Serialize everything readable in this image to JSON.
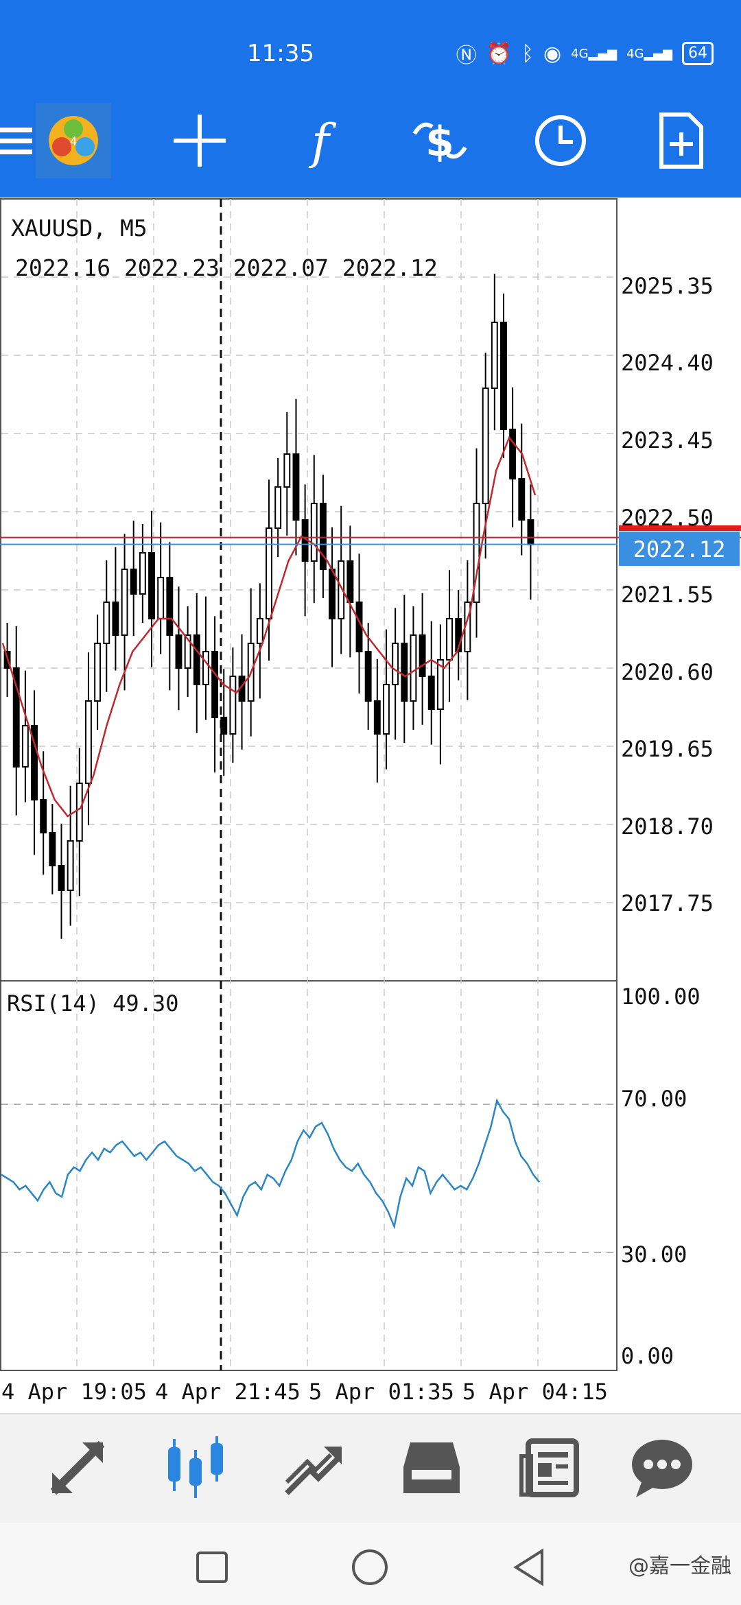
{
  "status_bar": {
    "time": "11:35",
    "signal_labels": [
      "4G",
      "4G"
    ],
    "battery": "64"
  },
  "toolbar": {
    "icons": [
      "menu-icon",
      "mt4-logo",
      "crosshair-icon",
      "indicators-icon",
      "trade-icon",
      "timeframe-clock-icon",
      "new-template-icon"
    ]
  },
  "chart": {
    "symbol_label": "XAUUSD, M5",
    "ohlc_values": "2022.16 2022.23 2022.07 2022.12",
    "price_ticks": [
      "2025.35",
      "2024.40",
      "2023.45",
      "2022.50",
      "2021.55",
      "2020.60",
      "2019.65",
      "2018.70",
      "2017.75"
    ],
    "current_price": "2022.12",
    "rsi_label": "RSI(14) 49.30",
    "rsi_ticks": [
      "100.00",
      "70.00",
      "30.00",
      "0.00"
    ],
    "time_ticks": [
      "4 Apr 19:05",
      "4 Apr 21:45",
      "5 Apr 01:35",
      "5 Apr 04:15"
    ],
    "colors": {
      "bull_bear_candles": "#000000",
      "moving_average": "#c0282d",
      "rsi_line": "#2b86c4",
      "current_price_tag": "#3b8fe0",
      "bid_line": "#c0282d"
    }
  },
  "chart_data": {
    "type": "candlestick",
    "title": "XAUUSD, M5",
    "ylim": [
      2016.8,
      2026.3
    ],
    "x_ticks": [
      "4 Apr 19:05",
      "4 Apr 21:45",
      "5 Apr 01:35",
      "5 Apr 04:15"
    ],
    "candles_close": [
      2020.6,
      2019.4,
      2019.9,
      2019.0,
      2018.6,
      2018.2,
      2017.9,
      2018.5,
      2019.2,
      2020.2,
      2020.9,
      2021.4,
      2021.0,
      2021.8,
      2021.5,
      2022.0,
      2021.2,
      2021.7,
      2021.0,
      2020.6,
      2021.0,
      2020.4,
      2020.8,
      2020.0,
      2019.8,
      2020.5,
      2020.2,
      2020.9,
      2021.2,
      2022.3,
      2022.8,
      2023.2,
      2022.4,
      2021.9,
      2022.6,
      2021.8,
      2021.2,
      2021.9,
      2021.4,
      2020.8,
      2020.2,
      2019.8,
      2020.4,
      2020.9,
      2020.2,
      2021.0,
      2020.5,
      2020.1,
      2020.7,
      2021.2,
      2020.8,
      2021.4,
      2022.6,
      2024.0,
      2024.8,
      2023.5,
      2022.9,
      2022.4,
      2022.1
    ],
    "ma_values": [
      2020.9,
      2020.4,
      2019.9,
      2019.4,
      2019.0,
      2018.8,
      2018.9,
      2019.3,
      2019.9,
      2020.4,
      2020.8,
      2021.0,
      2021.2,
      2021.2,
      2021.0,
      2020.8,
      2020.6,
      2020.4,
      2020.3,
      2020.5,
      2020.9,
      2021.4,
      2021.9,
      2022.2,
      2022.1,
      2021.9,
      2021.6,
      2021.3,
      2021.0,
      2020.8,
      2020.6,
      2020.5,
      2020.6,
      2020.7,
      2020.6,
      2020.8,
      2021.3,
      2022.2,
      2023.0,
      2023.4,
      2023.2,
      2022.7
    ],
    "current_price": 2022.12,
    "rsi": {
      "label": "RSI(14) 49.30",
      "range": [
        0,
        100
      ],
      "levels": [
        70,
        30
      ],
      "values": [
        51,
        50,
        49,
        47,
        48,
        46,
        44,
        47,
        49,
        46,
        45,
        51,
        53,
        52,
        55,
        57,
        55,
        58,
        57,
        59,
        60,
        58,
        56,
        57,
        55,
        57,
        59,
        60,
        58,
        56,
        55,
        54,
        52,
        53,
        51,
        49,
        48,
        46,
        43,
        40,
        45,
        48,
        49,
        47,
        51,
        50,
        48,
        52,
        55,
        60,
        63,
        61,
        64,
        65,
        62,
        58,
        55,
        53,
        52,
        54,
        51,
        49,
        46,
        44,
        41,
        37,
        45,
        50,
        48,
        53,
        52,
        46,
        49,
        51,
        49,
        47,
        48,
        47,
        50,
        54,
        59,
        64,
        71,
        68,
        66,
        60,
        56,
        54,
        51,
        49
      ]
    }
  },
  "bottom_nav": {
    "items": [
      "quotes-icon",
      "chart-icon",
      "trade-icon",
      "history-icon",
      "news-icon",
      "chat-icon"
    ],
    "active": "chart-icon"
  },
  "watermark": "@嘉一金融"
}
